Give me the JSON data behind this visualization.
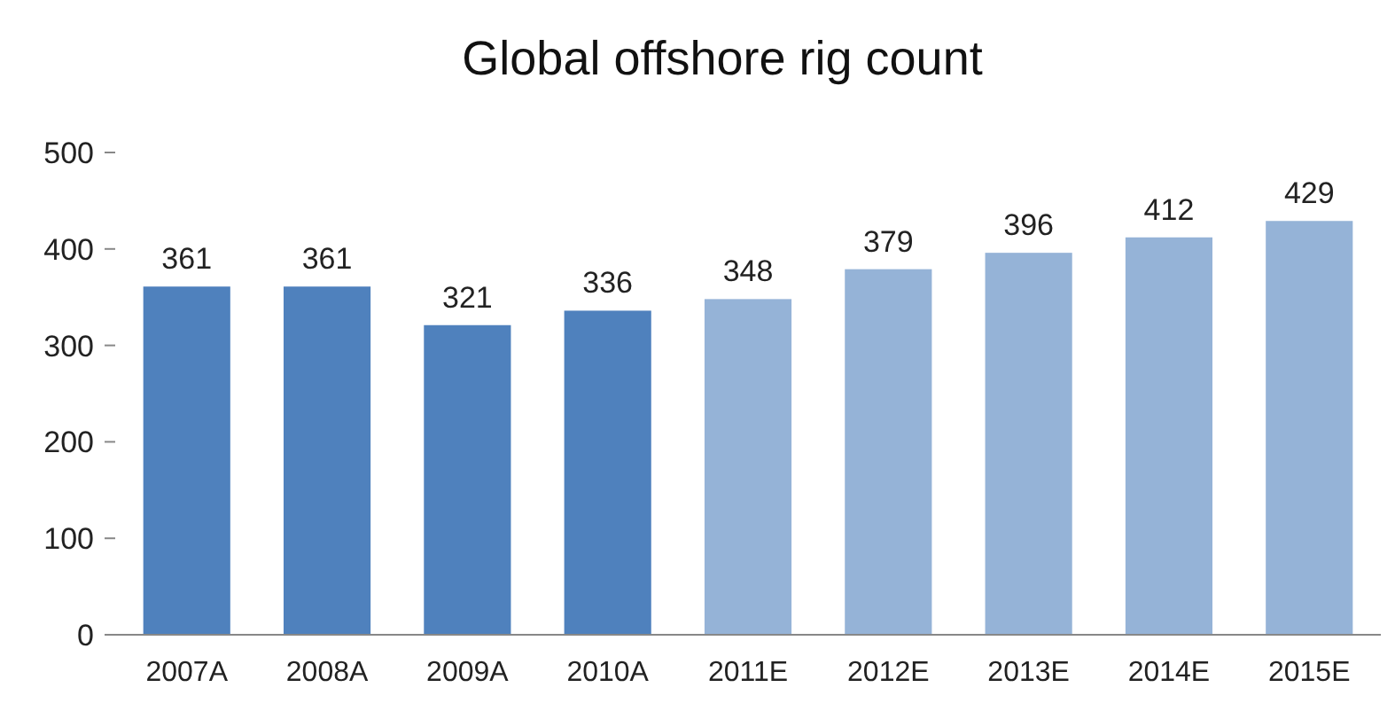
{
  "chart_data": {
    "type": "bar",
    "title": "Global offshore rig count",
    "categories": [
      "2007A",
      "2008A",
      "2009A",
      "2010A",
      "2011E",
      "2012E",
      "2013E",
      "2014E",
      "2015E"
    ],
    "values": [
      361,
      361,
      321,
      336,
      348,
      379,
      396,
      412,
      429
    ],
    "colors": [
      "#4f81bd",
      "#4f81bd",
      "#4f81bd",
      "#4f81bd",
      "#95b3d7",
      "#95b3d7",
      "#95b3d7",
      "#95b3d7",
      "#95b3d7"
    ],
    "ylim": [
      0,
      500
    ],
    "yticks": [
      0,
      100,
      200,
      300,
      400,
      500
    ],
    "data_labels": true
  }
}
